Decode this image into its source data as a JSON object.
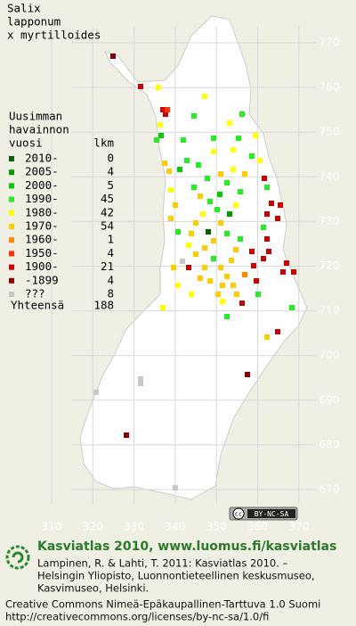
{
  "title": [
    "Salix",
    "lapponum",
    "x myrtilloides"
  ],
  "legend": {
    "header": [
      "Uusimman",
      "havainnon",
      "vuosi"
    ],
    "count_header": "lkm",
    "rows": [
      {
        "label": "2010-",
        "count": 0,
        "color": "#006400"
      },
      {
        "label": "2005-",
        "count": 4,
        "color": "#009a00"
      },
      {
        "label": "2000-",
        "count": 5,
        "color": "#00cc00"
      },
      {
        "label": "1990-",
        "count": 45,
        "color": "#22ee22"
      },
      {
        "label": "1980-",
        "count": 42,
        "color": "#ffff00"
      },
      {
        "label": "1970-",
        "count": 54,
        "color": "#ffcc00"
      },
      {
        "label": "1960-",
        "count": 1,
        "color": "#ff8800"
      },
      {
        "label": "1950-",
        "count": 4,
        "color": "#ff3300"
      },
      {
        "label": "1900-",
        "count": 21,
        "color": "#cc0000"
      },
      {
        "label": "-1899",
        "count": 4,
        "color": "#880000"
      },
      {
        "label": "???",
        "count": 8,
        "color": "#c8c8c8"
      }
    ],
    "total_label": "Yhteensä",
    "total": 188
  },
  "map": {
    "xticks": [
      310,
      320,
      330,
      340,
      350,
      360,
      370
    ],
    "yticks": [
      670,
      680,
      690,
      700,
      710,
      720,
      730,
      740,
      750,
      760,
      770
    ],
    "badge": [
      "cc",
      "BY-NC-SA"
    ]
  },
  "footer": {
    "heading": "Kasviatlas 2010, www.luomus.fi/kasviatlas",
    "citation": [
      "Lampinen, R. & Lahti, T. 2011: Kasviatlas 2010. –",
      "Helsingin Yliopisto, Luonnontieteellinen keskusmuseo,",
      "Kasvimuseo, Helsinki."
    ],
    "license": [
      "Creative Commons Nimeä-Epäkaupallinen-Tarttuva 1.0 Suomi",
      "http://creativecommons.org/licenses/by-nc-sa/1.0/fi"
    ]
  }
}
